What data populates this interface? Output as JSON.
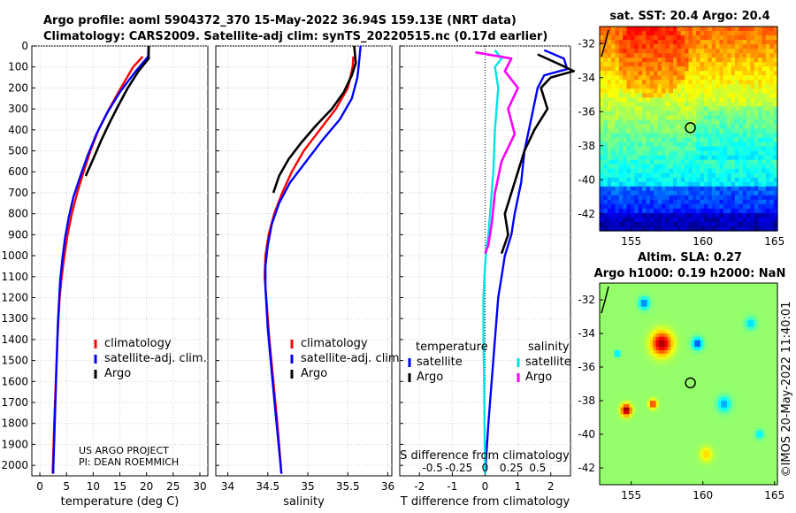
{
  "header": {
    "line1": "Argo profile: aoml 5904372_370 15-May-2022 36.94S 159.13E (NRT data)",
    "line2": "Climatology: CARS2009. Satellite-adj clim: synTS_20220515.nc (0.17d earlier)"
  },
  "attribution": {
    "project": "US ARGO PROJECT",
    "pi": "PI: DEAN ROEMMICH"
  },
  "colors": {
    "climatology": "#ff0000",
    "satellite": "#0000ff",
    "argo": "#000000",
    "sat_salinity": "#00e5e5",
    "argo_salinity": "#ff00ff"
  },
  "chart_data": [
    {
      "type": "line",
      "id": "temperature",
      "xlabel": "temperature (deg C)",
      "ylabel": "",
      "xlim": [
        -1.5,
        31.5
      ],
      "ylim": [
        2050,
        0
      ],
      "xticks": [
        0,
        5,
        10,
        15,
        20,
        25,
        30
      ],
      "yticks": [
        0,
        100,
        200,
        300,
        400,
        500,
        600,
        700,
        800,
        900,
        1000,
        1100,
        1200,
        1300,
        1400,
        1500,
        1600,
        1700,
        1800,
        1900,
        2000
      ],
      "legend": [
        "climatology",
        "satellite-adj. clim.",
        "Argo"
      ],
      "series": [
        {
          "name": "climatology",
          "color": "#ff0000",
          "x": [
            19.3,
            17.5,
            15.2,
            13.0,
            11.0,
            9.5,
            8.2,
            7.0,
            6.0,
            5.2,
            4.6,
            4.1,
            3.7,
            3.3,
            3.0,
            2.7,
            2.4
          ],
          "y": [
            50,
            100,
            200,
            300,
            400,
            500,
            600,
            700,
            800,
            900,
            1000,
            1100,
            1200,
            1400,
            1600,
            1800,
            2040
          ]
        },
        {
          "name": "satellite-adj. clim.",
          "color": "#0000ff",
          "x": [
            20.4,
            20.3,
            18.0,
            15.0,
            12.6,
            10.6,
            9.0,
            7.6,
            6.3,
            5.4,
            4.7,
            4.2,
            3.8,
            3.4,
            3.1,
            2.8,
            2.5
          ],
          "y": [
            0,
            50,
            120,
            220,
            320,
            420,
            520,
            620,
            720,
            820,
            920,
            1020,
            1120,
            1320,
            1550,
            1800,
            2040
          ]
        },
        {
          "name": "Argo",
          "color": "#000000",
          "x": [
            20.4,
            20.4,
            18.5,
            16.5,
            14.8,
            13.2,
            11.5,
            10.0,
            8.6
          ],
          "y": [
            0,
            60,
            120,
            200,
            280,
            360,
            450,
            540,
            620
          ]
        }
      ]
    },
    {
      "type": "line",
      "id": "salinity",
      "xlabel": "salinity",
      "ylabel": "",
      "xlim": [
        33.85,
        36.05
      ],
      "ylim": [
        2050,
        0
      ],
      "xticks": [
        34,
        34.5,
        35,
        35.5,
        36
      ],
      "xticklabels": [
        "34",
        "34.5",
        "35",
        "35.5",
        "36"
      ],
      "legend": [
        "climatology",
        "satellite-adj. clim.",
        "Argo"
      ],
      "series": [
        {
          "name": "climatology",
          "color": "#ff0000",
          "x": [
            35.57,
            35.56,
            35.5,
            35.35,
            35.15,
            34.95,
            34.8,
            34.68,
            34.58,
            34.51,
            34.47,
            34.46,
            34.48,
            34.52,
            34.57,
            34.62,
            34.67
          ],
          "y": [
            50,
            100,
            200,
            300,
            400,
            500,
            600,
            700,
            800,
            900,
            1000,
            1100,
            1200,
            1400,
            1600,
            1800,
            2040
          ]
        },
        {
          "name": "satellite-adj. clim.",
          "color": "#0000ff",
          "x": [
            35.66,
            35.64,
            35.62,
            35.55,
            35.4,
            35.18,
            34.98,
            34.78,
            34.64,
            34.55,
            34.5,
            34.47,
            34.47,
            34.5,
            34.56,
            34.61,
            34.67
          ],
          "y": [
            0,
            80,
            150,
            250,
            350,
            450,
            550,
            650,
            750,
            850,
            950,
            1050,
            1150,
            1350,
            1600,
            1800,
            2040
          ]
        },
        {
          "name": "Argo",
          "color": "#000000",
          "x": [
            35.58,
            35.6,
            35.55,
            35.45,
            35.3,
            35.1,
            34.92,
            34.76,
            34.64,
            34.57
          ],
          "y": [
            0,
            80,
            140,
            220,
            300,
            380,
            460,
            540,
            620,
            700
          ]
        }
      ]
    },
    {
      "type": "line",
      "id": "differences",
      "xlabel": "T difference from climatology",
      "xlabel_top": "S difference from climatology",
      "xlim": [
        -2.6,
        2.6
      ],
      "ylim": [
        2050,
        0
      ],
      "xticks": [
        -2,
        -1,
        0,
        1,
        2
      ],
      "s_ticklabels": [
        "-0.5",
        "-0.25",
        "0",
        "0.25",
        "0.5"
      ],
      "legend_temperature_title": "temperature",
      "legend_salinity_title": "salinity",
      "legend": [
        "satellite",
        "Argo",
        "satellite",
        "Argo"
      ],
      "series": [
        {
          "name": "satellite",
          "group": "temperature",
          "color": "#0000ff",
          "x": [
            1.8,
            2.4,
            2.5,
            1.8,
            1.6,
            1.4,
            1.2,
            1.1,
            0.9,
            0.8,
            0.6,
            0.5,
            0.4,
            0.3,
            0.2,
            0.1,
            0.0
          ],
          "y": [
            20,
            60,
            110,
            140,
            200,
            350,
            500,
            650,
            800,
            900,
            1000,
            1100,
            1200,
            1400,
            1600,
            1800,
            2040
          ]
        },
        {
          "name": "Argo",
          "group": "temperature",
          "color": "#000000",
          "x": [
            1.6,
            2.3,
            2.7,
            2.0,
            1.7,
            1.9,
            1.5,
            1.2,
            1.0,
            0.8,
            0.6,
            0.7,
            0.5
          ],
          "y": [
            40,
            90,
            120,
            150,
            200,
            300,
            400,
            500,
            600,
            700,
            800,
            900,
            990
          ]
        },
        {
          "name": "satellite",
          "group": "salinity",
          "color": "#00e5e5",
          "x": [
            0.3,
            0.5,
            0.3,
            0.4,
            0.3,
            0.25,
            0.2,
            0.15,
            0.1,
            0.05,
            0.02,
            -0.02,
            -0.05,
            -0.05,
            -0.03,
            -0.02,
            0.0
          ],
          "y": [
            20,
            60,
            100,
            200,
            400,
            600,
            700,
            800,
            900,
            950,
            1000,
            1100,
            1200,
            1400,
            1600,
            1800,
            2040
          ]
        },
        {
          "name": "Argo",
          "group": "salinity",
          "color": "#ff00ff",
          "x": [
            -0.3,
            0.8,
            0.6,
            1.0,
            0.7,
            0.9,
            0.5,
            0.3,
            0.2,
            0.1,
            0.0
          ],
          "y": [
            30,
            60,
            120,
            200,
            300,
            420,
            550,
            700,
            850,
            950,
            990
          ]
        }
      ]
    },
    {
      "type": "heatmap",
      "id": "sst_map",
      "title": "sat. SST: 20.4 Argo: 20.4",
      "xlim": [
        152.8,
        165.2
      ],
      "ylim": [
        -43,
        -31
      ],
      "xticks": [
        155,
        160,
        165
      ],
      "yticks": [
        -32,
        -34,
        -36,
        -38,
        -40,
        -42
      ],
      "float_position": [
        159.13,
        -36.94
      ]
    },
    {
      "type": "heatmap",
      "id": "sla_map",
      "title": "Altim. SLA: 0.27",
      "subtitle": "Argo h1000: 0.19 h2000: NaN",
      "xlim": [
        152.8,
        165.2
      ],
      "ylim": [
        -43,
        -31
      ],
      "xticks": [
        155,
        160,
        165
      ],
      "yticks": [
        -32,
        -34,
        -36,
        -38,
        -40,
        -42
      ],
      "float_position": [
        159.13,
        -36.94
      ]
    }
  ],
  "timestamp": "©IMOS 20-May-2022 11:40:01"
}
